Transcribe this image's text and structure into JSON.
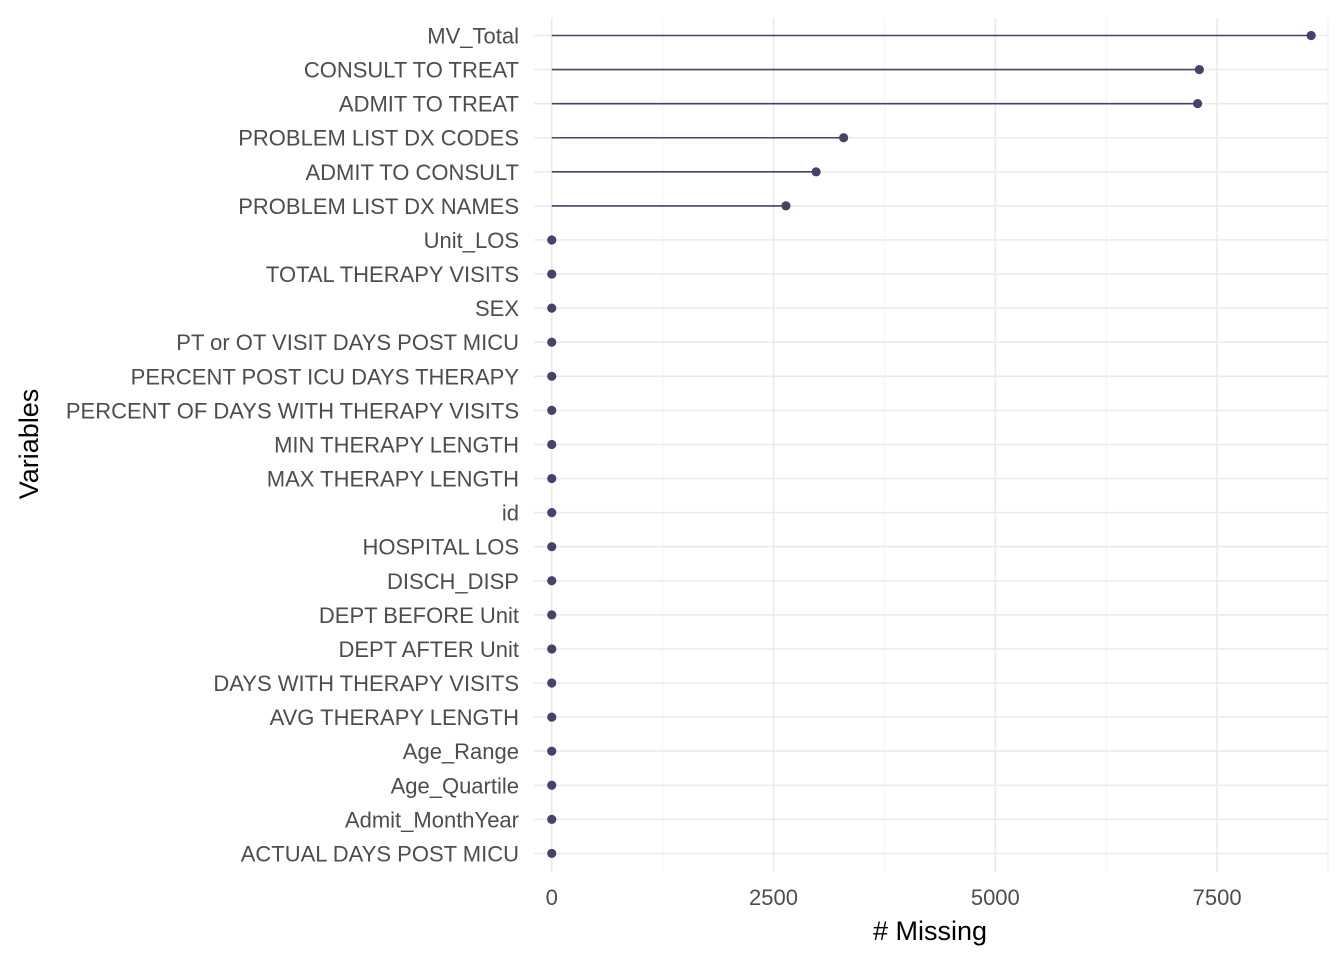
{
  "chart_data": {
    "type": "lollipop",
    "xlabel": "# Missing",
    "ylabel": "Variables",
    "xlim": [
      -200,
      8750
    ],
    "xticks": [
      0,
      2500,
      5000,
      7500
    ],
    "xtick_labels": [
      "0",
      "2500",
      "5000",
      "7500"
    ],
    "grid": true,
    "color": "#44446b",
    "categories": [
      "MV_Total",
      "CONSULT TO TREAT",
      "ADMIT TO TREAT",
      "PROBLEM LIST DX CODES",
      "ADMIT TO CONSULT",
      "PROBLEM LIST DX NAMES",
      "Unit_LOS",
      "TOTAL THERAPY VISITS",
      "SEX",
      "PT or OT VISIT DAYS POST MICU",
      "PERCENT POST ICU DAYS THERAPY",
      "PERCENT OF DAYS WITH THERAPY VISITS",
      "MIN THERAPY LENGTH",
      "MAX THERAPY LENGTH",
      "id",
      "HOSPITAL LOS",
      "DISCH_DISP",
      "DEPT BEFORE Unit",
      "DEPT AFTER Unit",
      "DAYS WITH THERAPY VISITS",
      "AVG THERAPY LENGTH",
      "Age_Range",
      "Age_Quartile",
      "Admit_MonthYear",
      "ACTUAL DAYS POST MICU"
    ],
    "values": [
      8560,
      7300,
      7280,
      3290,
      2980,
      2640,
      0,
      0,
      0,
      0,
      0,
      0,
      0,
      0,
      0,
      0,
      0,
      0,
      0,
      0,
      0,
      0,
      0,
      0,
      0
    ]
  }
}
